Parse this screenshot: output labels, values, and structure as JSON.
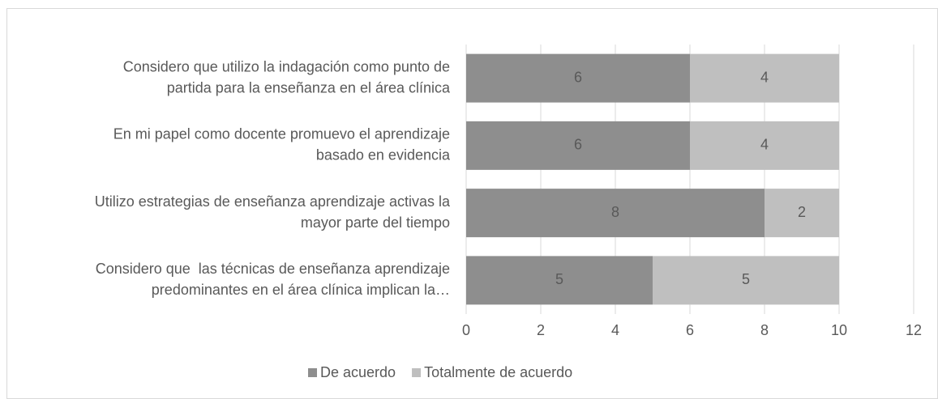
{
  "chart_data": {
    "type": "stacked_barh",
    "categories": [
      [
        "Considero que utilizo la indagación como punto de",
        "partida para la enseñanza en el área clínica"
      ],
      [
        "En mi papel como docente promuevo el aprendizaje",
        "basado en evidencia"
      ],
      [
        "Utilizo estrategias de enseñanza aprendizaje activas la",
        "mayor parte del tiempo"
      ],
      [
        "Considero que  las técnicas de enseñanza aprendizaje",
        "predominantes en el área clínica implican la…"
      ]
    ],
    "series": [
      {
        "name": "De acuerdo",
        "color": "#8e8e8e",
        "values": [
          6,
          6,
          8,
          5
        ]
      },
      {
        "name": "Totalmente de acuerdo",
        "color": "#bfbfbf",
        "values": [
          4,
          4,
          2,
          5
        ]
      }
    ],
    "xlim": [
      0,
      12
    ],
    "xticks": [
      0,
      2,
      4,
      6,
      8,
      10,
      12
    ],
    "grid": true,
    "legend": "bottom"
  }
}
